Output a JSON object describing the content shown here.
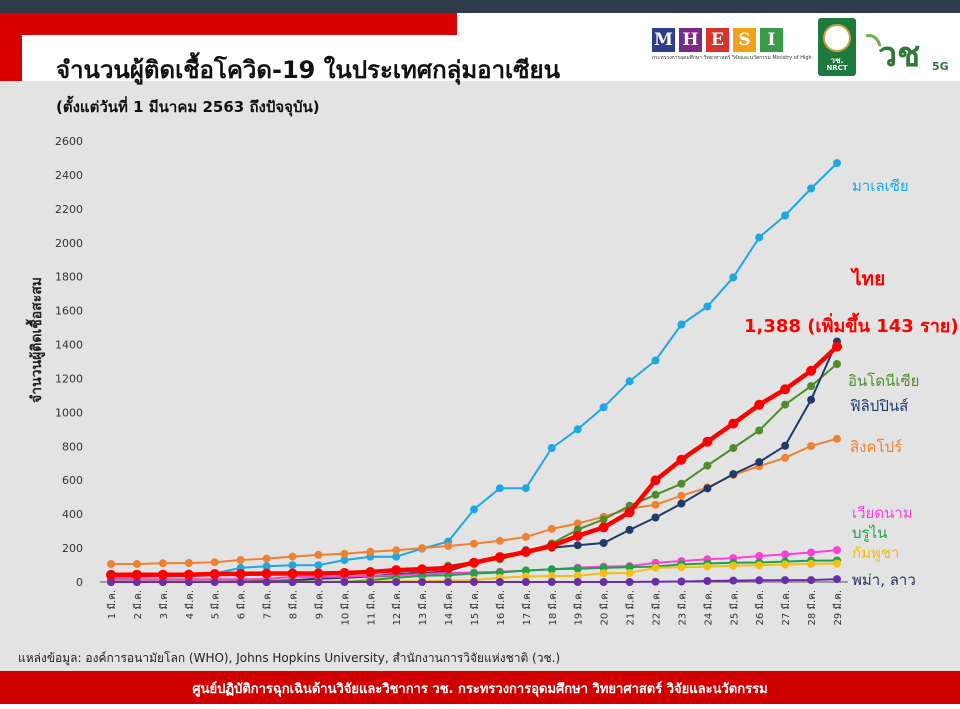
{
  "header": {
    "title": "จำนวนผู้ติดเชื้อโควิด-19 ในประเทศกลุ่มอาเซียน",
    "subtitle": "(ตั้งแต่วันที่ 1 มีนาคม 2563 ถึงปัจจุบัน)"
  },
  "logos": {
    "mhesi_letters": [
      "M",
      "H",
      "E",
      "S",
      "I"
    ],
    "mhesi_letter_colors": [
      "#2d3e8f",
      "#7b2b86",
      "#d6342b",
      "#f0a21a",
      "#3a9a46"
    ],
    "mhesi_caption": "กระทรวงการอุดมศึกษา วิทยาศาสตร์ วิจัยและนวัตกรรม Ministry of Higher Education, Science, Research and Innovation",
    "nrct_text": "วช.",
    "nrct_sub": "NRCT",
    "vision_text": "วช",
    "vision_badge": "5G"
  },
  "chart_data": {
    "type": "line",
    "ylabel": "จำนวนผู้ติดเชื้อสะสม",
    "ylim": [
      0,
      2600
    ],
    "yticks": [
      0,
      200,
      400,
      600,
      800,
      1000,
      1200,
      1400,
      1600,
      1800,
      2000,
      2200,
      2400,
      2600
    ],
    "grid": false,
    "categories": [
      "1 มี.ค.",
      "2 มี.ค.",
      "3 มี.ค.",
      "4 มี.ค.",
      "5 มี.ค.",
      "6 มี.ค.",
      "7 มี.ค.",
      "8 มี.ค.",
      "9 มี.ค.",
      "10 มี.ค.",
      "11 มี.ค.",
      "12 มี.ค.",
      "13 มี.ค.",
      "14 มี.ค.",
      "15 มี.ค.",
      "16 มี.ค.",
      "17 มี.ค.",
      "18 มี.ค.",
      "19 มี.ค.",
      "20 มี.ค.",
      "21 มี.ค.",
      "22 มี.ค.",
      "23 มี.ค.",
      "24 มี.ค.",
      "25 มี.ค.",
      "26 มี.ค.",
      "27 มี.ค.",
      "28 มี.ค.",
      "29 มี.ค."
    ],
    "series": [
      {
        "name": "มาเลเซีย",
        "color": "#1fa7e1",
        "width": 2,
        "values": [
          25,
          29,
          36,
          50,
          50,
          83,
          93,
          99,
          99,
          129,
          149,
          149,
          197,
          238,
          428,
          553,
          553,
          790,
          900,
          1030,
          1183,
          1306,
          1518,
          1624,
          1796,
          2031,
          2161,
          2320,
          2470
        ]
      },
      {
        "name": "สิงคโปร์",
        "color": "#ef8132",
        "width": 2,
        "values": [
          106,
          106,
          110,
          112,
          117,
          130,
          138,
          150,
          160,
          166,
          178,
          187,
          200,
          212,
          226,
          243,
          266,
          313,
          345,
          385,
          432,
          455,
          509,
          558,
          631,
          683,
          732,
          802,
          844
        ]
      },
      {
        "name": "อินโดนีเซีย",
        "color": "#4f8c2f",
        "width": 2,
        "values": [
          0,
          2,
          2,
          2,
          2,
          4,
          4,
          6,
          19,
          27,
          34,
          34,
          69,
          96,
          117,
          134,
          172,
          227,
          309,
          369,
          450,
          514,
          579,
          686,
          790,
          893,
          1046,
          1155,
          1285
        ]
      },
      {
        "name": "ฟิลิปปินส์",
        "color": "#1f3a6b",
        "width": 2,
        "values": [
          3,
          3,
          3,
          3,
          3,
          5,
          6,
          10,
          20,
          24,
          33,
          49,
          52,
          64,
          111,
          140,
          187,
          202,
          217,
          230,
          307,
          380,
          462,
          552,
          636,
          707,
          803,
          1075,
          1418
        ]
      },
      {
        "name": "เวียดนาม",
        "color": "#ff3fd6",
        "width": 2,
        "values": [
          16,
          16,
          16,
          16,
          16,
          16,
          18,
          30,
          30,
          31,
          38,
          39,
          47,
          53,
          56,
          61,
          66,
          75,
          85,
          91,
          94,
          113,
          123,
          134,
          141,
          153,
          163,
          174,
          188
        ]
      },
      {
        "name": "บรูไน",
        "color": "#1fa34a",
        "width": 2,
        "values": [
          0,
          0,
          0,
          0,
          0,
          0,
          0,
          0,
          1,
          1,
          11,
          25,
          37,
          40,
          50,
          56,
          68,
          75,
          78,
          83,
          88,
          91,
          104,
          109,
          114,
          115,
          120,
          126,
          127
        ]
      },
      {
        "name": "กัมพูชา",
        "color": "#f2c014",
        "width": 2,
        "values": [
          1,
          1,
          1,
          1,
          1,
          1,
          1,
          2,
          2,
          2,
          3,
          5,
          5,
          7,
          12,
          24,
          33,
          35,
          37,
          51,
          53,
          84,
          87,
          91,
          96,
          99,
          103,
          107,
          109
        ]
      },
      {
        "name": "พม่า, ลาว",
        "color": "#6a2fa8",
        "width": 2,
        "values": [
          0,
          0,
          0,
          0,
          0,
          0,
          0,
          0,
          0,
          0,
          0,
          0,
          0,
          0,
          0,
          0,
          0,
          0,
          0,
          0,
          0,
          2,
          3,
          6,
          8,
          10,
          11,
          11,
          17
        ]
      },
      {
        "name": "ไทย",
        "color": "#ff0000",
        "width": 4.5,
        "values": [
          42,
          43,
          43,
          43,
          47,
          48,
          50,
          50,
          50,
          53,
          59,
          70,
          75,
          82,
          114,
          147,
          177,
          212,
          272,
          322,
          411,
          599,
          721,
          827,
          934,
          1045,
          1136,
          1245,
          1388
        ]
      }
    ],
    "annotations": {
      "thai_total": "1,388 (เพิ่มขึ้น 143 ราย)"
    }
  },
  "source": "แหล่งข้อมูล: องค์การอนามัยโลก (WHO), Johns Hopkins University, สำนักงานการวิจัยแห่งชาติ (วช.)",
  "footer": "ศูนย์ปฏิบัติการฉุกเฉินด้านวิจัยและวิชาการ   วช.   กระทรวงการอุดมศึกษา วิทยาศาสตร์ วิจัยและนวัตกรรม"
}
